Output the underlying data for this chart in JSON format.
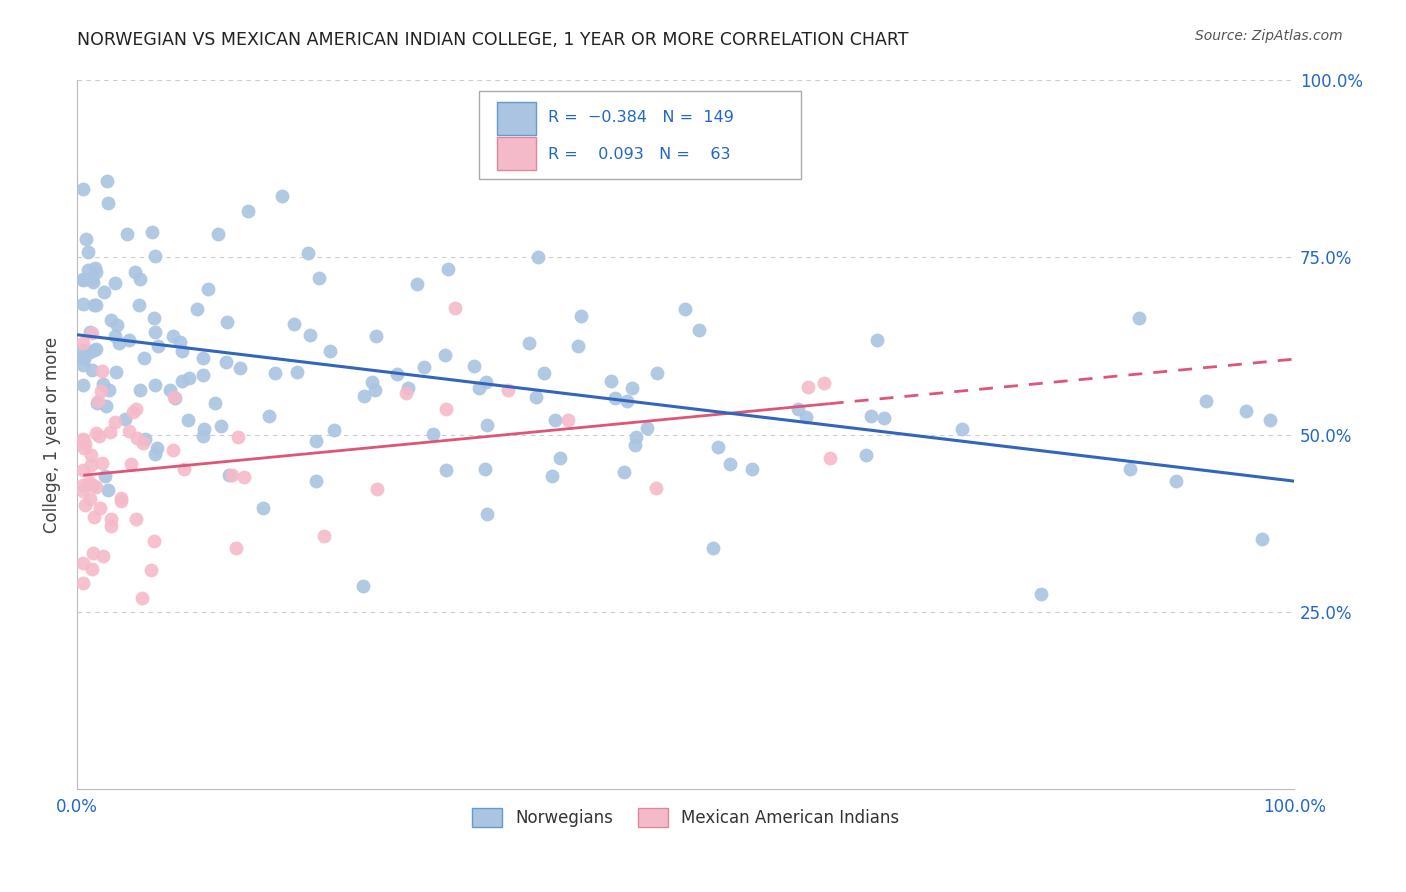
{
  "title": "NORWEGIAN VS MEXICAN AMERICAN INDIAN COLLEGE, 1 YEAR OR MORE CORRELATION CHART",
  "source": "Source: ZipAtlas.com",
  "ylabel": "College, 1 year or more",
  "blue_R": -0.384,
  "blue_N": 149,
  "pink_R": 0.093,
  "pink_N": 63,
  "blue_color": "#aac4e2",
  "pink_color": "#f5baca",
  "blue_line_color": "#3366bb",
  "pink_line_color": "#dd5577",
  "grid_color": "#cccccc",
  "background_color": "#ffffff",
  "title_color": "#222222",
  "source_color": "#555555",
  "tick_color": "#2266cc",
  "ylabel_color": "#444444",
  "legend_text_color": "#2266cc"
}
